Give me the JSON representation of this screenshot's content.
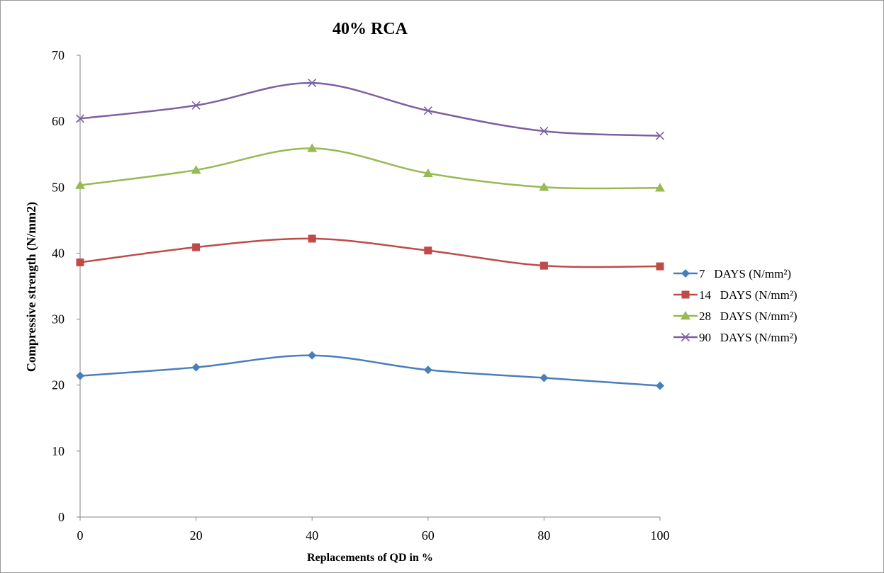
{
  "chart_data": {
    "type": "line",
    "title": "40% RCA",
    "xlabel": "Replacements of QD in %",
    "ylabel": "Compressive strength (N/mm2)",
    "x": [
      0,
      20,
      40,
      60,
      80,
      100
    ],
    "xlim": [
      0,
      100
    ],
    "ylim": [
      0,
      70
    ],
    "x_ticks": [
      "0",
      "20",
      "40",
      "60",
      "80",
      "100"
    ],
    "y_ticks": [
      "0",
      "10",
      "20",
      "30",
      "40",
      "50",
      "60",
      "70"
    ],
    "grid": false,
    "legend_position": "right",
    "smooth": true,
    "series": [
      {
        "name": "7   DAYS (N/mm²)",
        "color": "#4a7ebb",
        "marker": "diamond",
        "values": [
          21.4,
          22.7,
          24.5,
          22.3,
          21.1,
          19.9
        ]
      },
      {
        "name": "14   DAYS (N/mm²)",
        "color": "#be4b48",
        "marker": "square",
        "values": [
          38.6,
          40.9,
          42.2,
          40.4,
          38.1,
          38.0
        ]
      },
      {
        "name": "28   DAYS (N/mm²)",
        "color": "#98b954",
        "marker": "triangle",
        "values": [
          50.3,
          52.6,
          55.9,
          52.1,
          50.0,
          49.9
        ]
      },
      {
        "name": "90   DAYS (N/mm²)",
        "color": "#7d60a0",
        "marker": "x",
        "values": [
          60.4,
          62.4,
          65.8,
          61.6,
          58.5,
          57.8
        ]
      }
    ]
  }
}
